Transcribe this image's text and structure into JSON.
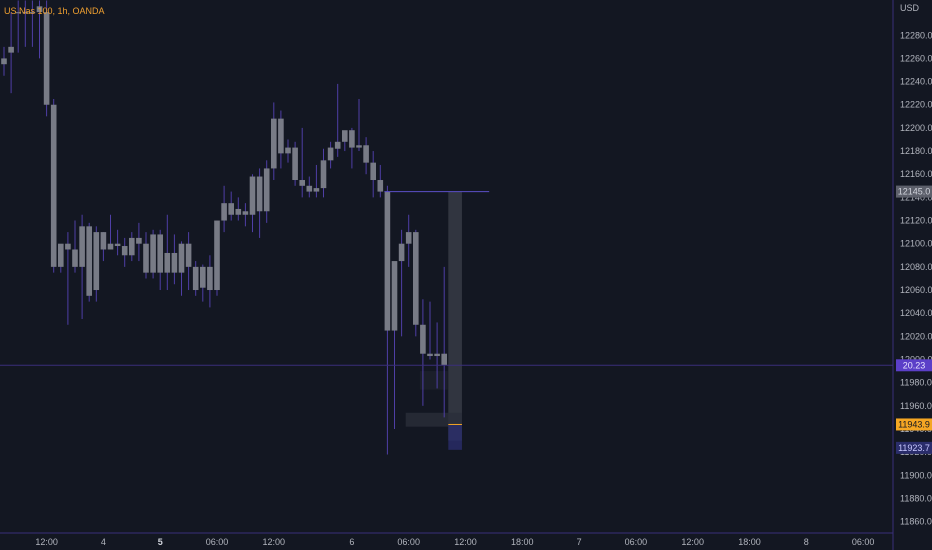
{
  "header": {
    "symbol": "US Nas 100, 1h, OANDA"
  },
  "colors": {
    "background": "#131722",
    "candle_body": "#787b86",
    "candle_wick": "#4f3fa6",
    "axis_line": "#3a2f7a",
    "crosshair": "#3a2f7a",
    "text": "#b2b5be",
    "gray_tag": "#5d606b",
    "purple_tag": "#5b3fc8",
    "orange_tag": "#f5a623",
    "navy_tag": "#2a2d6b"
  },
  "chart_data": {
    "type": "candlestick",
    "currency": "USD",
    "ylim": [
      11850,
      12300
    ],
    "y_ticks": [
      12280,
      12260,
      12240,
      12220,
      12200,
      12180,
      12160,
      12140,
      12120,
      12100,
      12080,
      12060,
      12040,
      12020,
      12000,
      11980,
      11960,
      11940,
      11920,
      11900,
      11880,
      11860
    ],
    "y_tick_labels": [
      "12280.0",
      "12260.0",
      "12240.0",
      "12220.0",
      "12200.0",
      "12180.0",
      "12160.0",
      "12140.0",
      "12120.0",
      "12100.0",
      "12080.0",
      "12060.0",
      "12040.0",
      "12020.0",
      "12000.0",
      "11980.0",
      "11960.0",
      "11940.0",
      "11920.0",
      "11900.0",
      "11880.0",
      "11860.0"
    ],
    "x_ticks": [
      {
        "label": "12:00",
        "bar": 6,
        "bold": false
      },
      {
        "label": "4",
        "bar": 14,
        "bold": false
      },
      {
        "label": "5",
        "bar": 22,
        "bold": true
      },
      {
        "label": "06:00",
        "bar": 30,
        "bold": false
      },
      {
        "label": "12:00",
        "bar": 38,
        "bold": false
      },
      {
        "label": "6",
        "bar": 49,
        "bold": false
      },
      {
        "label": "06:00",
        "bar": 57,
        "bold": false
      },
      {
        "label": "12:00",
        "bar": 65,
        "bold": false
      },
      {
        "label": "18:00",
        "bar": 73,
        "bold": false
      },
      {
        "label": "7",
        "bar": 81,
        "bold": false
      },
      {
        "label": "06:00",
        "bar": 89,
        "bold": false
      },
      {
        "label": "12:00",
        "bar": 97,
        "bold": false
      },
      {
        "label": "18:00",
        "bar": 105,
        "bold": false
      },
      {
        "label": "8",
        "bar": 113,
        "bold": false
      },
      {
        "label": "06:00",
        "bar": 121,
        "bold": false
      }
    ],
    "candles": [
      [
        12260,
        12270,
        12255,
        12245
      ],
      [
        12270,
        12300,
        12265,
        12230
      ],
      [
        12300,
        12310,
        12300,
        12265
      ],
      [
        12300,
        12310,
        12300,
        12270
      ],
      [
        12300,
        12310,
        12300,
        12270
      ],
      [
        12305,
        12310,
        12300,
        12260
      ],
      [
        12300,
        12310,
        12220,
        12210
      ],
      [
        12220,
        12225,
        12080,
        12075
      ],
      [
        12080,
        12095,
        12100,
        12075
      ],
      [
        12100,
        12110,
        12095,
        12030
      ],
      [
        12095,
        12120,
        12080,
        12075
      ],
      [
        12080,
        12125,
        12115,
        12035
      ],
      [
        12115,
        12118,
        12055,
        12050
      ],
      [
        12060,
        12115,
        12110,
        12050
      ],
      [
        12110,
        12110,
        12095,
        12085
      ],
      [
        12095,
        12125,
        12100,
        12095
      ],
      [
        12100,
        12112,
        12098,
        12090
      ],
      [
        12098,
        12105,
        12090,
        12080
      ],
      [
        12090,
        12110,
        12105,
        12085
      ],
      [
        12105,
        12118,
        12100,
        12085
      ],
      [
        12100,
        12110,
        12075,
        12070
      ],
      [
        12075,
        12112,
        12108,
        12070
      ],
      [
        12108,
        12112,
        12075,
        12060
      ],
      [
        12075,
        12125,
        12092,
        12060
      ],
      [
        12092,
        12108,
        12075,
        12065
      ],
      [
        12075,
        12102,
        12100,
        12055
      ],
      [
        12100,
        12110,
        12080,
        12060
      ],
      [
        12080,
        12085,
        12060,
        12055
      ],
      [
        12062,
        12082,
        12080,
        12050
      ],
      [
        12080,
        12090,
        12060,
        12045
      ],
      [
        12060,
        12120,
        12120,
        12055
      ],
      [
        12120,
        12150,
        12135,
        12110
      ],
      [
        12135,
        12145,
        12125,
        12120
      ],
      [
        12125,
        12140,
        12130,
        12120
      ],
      [
        12128,
        12135,
        12125,
        12115
      ],
      [
        12125,
        12160,
        12158,
        12110
      ],
      [
        12158,
        12165,
        12128,
        12105
      ],
      [
        12128,
        12172,
        12165,
        12118
      ],
      [
        12165,
        12222,
        12208,
        12155
      ],
      [
        12208,
        12215,
        12178,
        12165
      ],
      [
        12178,
        12190,
        12183,
        12170
      ],
      [
        12183,
        12188,
        12155,
        12150
      ],
      [
        12155,
        12200,
        12150,
        12140
      ],
      [
        12150,
        12158,
        12145,
        12140
      ],
      [
        12145,
        12168,
        12148,
        12140
      ],
      [
        12148,
        12182,
        12172,
        12140
      ],
      [
        12172,
        12188,
        12183,
        12165
      ],
      [
        12182,
        12238,
        12188,
        12175
      ],
      [
        12188,
        12195,
        12198,
        12180
      ],
      [
        12198,
        12200,
        12183,
        12165
      ],
      [
        12183,
        12225,
        12185,
        12180
      ],
      [
        12185,
        12192,
        12170,
        12160
      ],
      [
        12170,
        12180,
        12155,
        12140
      ],
      [
        12155,
        12168,
        12145,
        12140
      ],
      [
        12145,
        12150,
        12025,
        11918
      ],
      [
        12025,
        12032,
        12085,
        11940
      ],
      [
        12085,
        12112,
        12100,
        12020
      ],
      [
        12100,
        12125,
        12110,
        12080
      ],
      [
        12110,
        12112,
        12030,
        12020
      ],
      [
        12030,
        12052,
        12005,
        11960
      ],
      [
        12005,
        12050,
        12003,
        12000
      ],
      [
        12003,
        12032,
        12005,
        11975
      ],
      [
        12005,
        12080,
        11995,
        11950
      ]
    ],
    "last_bar_center": 62,
    "horizontal_line": 12145,
    "horizontal_line_start_bar": 54,
    "crosshair_price": 11995,
    "overlays": [
      {
        "from_bar": 63,
        "to_bar": 64.5,
        "low": 11930,
        "high": 12145,
        "color": "#4a4e5a",
        "opacity": 0.55
      },
      {
        "from_bar": 57,
        "to_bar": 64.5,
        "low": 11942,
        "high": 11954,
        "color": "#2a2e39",
        "opacity": 0.8
      },
      {
        "from_bar": 63,
        "to_bar": 64.5,
        "low": 11922,
        "high": 11943.9,
        "color": "#2a2d6b",
        "opacity": 0.8
      },
      {
        "from_bar": 59,
        "to_bar": 62.5,
        "low": 11974,
        "high": 11990,
        "color": "#1e222d",
        "opacity": 0.8
      }
    ],
    "price_tags": [
      {
        "price": 12145,
        "text": "12145.0",
        "bg": "#5d606b",
        "fg": "#d1d4dc"
      },
      {
        "price": 11995,
        "text": "20.23",
        "bg": "#5b3fc8",
        "fg": "#e8e4ff"
      },
      {
        "price": 11943.9,
        "text": "11943.9",
        "bg": "#f5a623",
        "fg": "#131722"
      },
      {
        "price": 11923.7,
        "text": "11923.7",
        "bg": "#2a2d6b",
        "fg": "#c8c8ff"
      }
    ]
  }
}
